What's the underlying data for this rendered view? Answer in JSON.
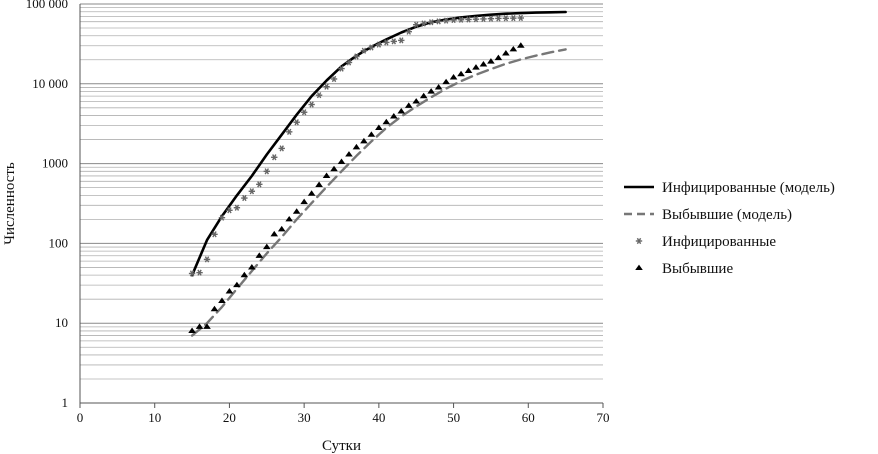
{
  "chart_data": {
    "type": "scatter",
    "title": "",
    "xlabel": "Сутки",
    "ylabel": "Численность",
    "xlim": [
      0,
      70
    ],
    "ylim": [
      1,
      100000
    ],
    "yscale": "log",
    "grid": "horizontal major and minor lines",
    "legend_position": "right",
    "x_ticks": [
      0,
      10,
      20,
      30,
      40,
      50,
      60,
      70
    ],
    "x_tick_labels": [
      "0",
      "10",
      "20",
      "30",
      "40",
      "50",
      "60",
      "70"
    ],
    "y_ticks": [
      1,
      10,
      100,
      1000,
      10000,
      100000
    ],
    "y_tick_labels": [
      "1",
      "10",
      "100",
      "1000",
      "10 000",
      "100 000"
    ],
    "series": [
      {
        "name": "Инфицированные (модель)",
        "kind": "line",
        "style": "solid",
        "color": "#000000",
        "x": [
          15,
          17,
          19,
          21,
          23,
          25,
          27,
          29,
          31,
          33,
          35,
          37,
          39,
          41,
          43,
          45,
          47,
          49,
          51,
          53,
          55,
          57,
          59,
          61,
          63,
          65
        ],
        "y": [
          40,
          110,
          220,
          400,
          700,
          1300,
          2300,
          4100,
          7000,
          11000,
          16500,
          22500,
          29000,
          36000,
          44000,
          52000,
          59000,
          64000,
          68000,
          71000,
          73500,
          75500,
          77000,
          78000,
          78800,
          79300
        ]
      },
      {
        "name": "Выбывшие (модель)",
        "kind": "line",
        "style": "dashed",
        "color": "#777777",
        "x": [
          15,
          17,
          19,
          21,
          23,
          25,
          27,
          29,
          31,
          33,
          35,
          37,
          39,
          41,
          43,
          45,
          47,
          49,
          51,
          53,
          55,
          57,
          59,
          61,
          63,
          65
        ],
        "y": [
          7,
          10,
          16,
          27,
          45,
          75,
          120,
          200,
          320,
          510,
          800,
          1250,
          1900,
          2800,
          3900,
          5200,
          6800,
          8700,
          10800,
          13000,
          15300,
          17800,
          20200,
          22500,
          24800,
          27000
        ]
      },
      {
        "name": "Инфицированные",
        "kind": "markers",
        "marker": "asterisk",
        "color": "#666666",
        "x": [
          15,
          16,
          17,
          18,
          19,
          20,
          21,
          22,
          23,
          24,
          25,
          26,
          27,
          28,
          29,
          30,
          31,
          32,
          33,
          34,
          35,
          36,
          37,
          38,
          39,
          40,
          41,
          42,
          43,
          44,
          45,
          46,
          47,
          48,
          49,
          50,
          51,
          52,
          53,
          54,
          55,
          56,
          57,
          58,
          59
        ],
        "y": [
          42,
          43,
          63,
          130,
          210,
          260,
          280,
          370,
          450,
          550,
          800,
          1200,
          1550,
          2500,
          3300,
          4400,
          5500,
          7200,
          9200,
          11500,
          15500,
          18500,
          22000,
          26000,
          28500,
          31000,
          33000,
          34000,
          35000,
          45000,
          55000,
          57000,
          59000,
          60500,
          62000,
          63000,
          63500,
          64000,
          64500,
          65000,
          65500,
          66000,
          66200,
          66500,
          66800
        ]
      },
      {
        "name": "Выбывшие",
        "kind": "markers",
        "marker": "triangle",
        "color": "#000000",
        "x": [
          15,
          16,
          17,
          18,
          19,
          20,
          21,
          22,
          23,
          24,
          25,
          26,
          27,
          28,
          29,
          30,
          31,
          32,
          33,
          34,
          35,
          36,
          37,
          38,
          39,
          40,
          41,
          42,
          43,
          44,
          45,
          46,
          47,
          48,
          49,
          50,
          51,
          52,
          53,
          54,
          55,
          56,
          57,
          58,
          59
        ],
        "y": [
          8,
          9,
          9,
          15,
          19,
          25,
          30,
          40,
          50,
          70,
          90,
          130,
          150,
          200,
          250,
          330,
          420,
          540,
          700,
          850,
          1050,
          1300,
          1600,
          1900,
          2300,
          2800,
          3300,
          3900,
          4500,
          5300,
          6000,
          7000,
          8000,
          9000,
          10500,
          12000,
          13200,
          14500,
          16000,
          17500,
          19000,
          21000,
          24000,
          27000,
          30000
        ]
      }
    ]
  }
}
